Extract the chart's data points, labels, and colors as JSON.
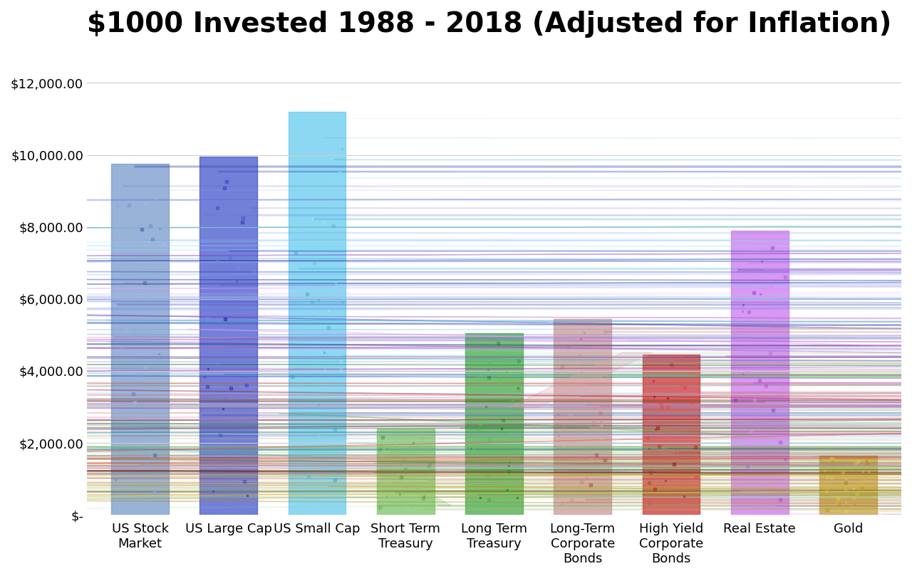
{
  "title": "$1000 Invested 1988 - 2018 (Adjusted for Inflation)",
  "categories": [
    "US Stock\nMarket",
    "US Large Cap",
    "US Small Cap",
    "Short Term\nTreasury",
    "Long Term\nTreasury",
    "Long-Term\nCorporate\nBonds",
    "High Yield\nCorporate\nBonds",
    "Real Estate",
    "Gold"
  ],
  "values": [
    9750,
    9950,
    11200,
    2400,
    5050,
    5450,
    4450,
    7900,
    1650
  ],
  "bar_colors": [
    "#7799cc",
    "#4455cc",
    "#66ccee",
    "#88cc77",
    "#44aa44",
    "#cc9999",
    "#cc3333",
    "#cc77ee",
    "#ccaa44"
  ],
  "bar_alphas": [
    0.75,
    0.75,
    0.75,
    0.85,
    0.75,
    0.75,
    0.75,
    0.75,
    0.85
  ],
  "texture_colors": [
    [
      "#aabbdd",
      "#5566bb",
      "#88aaee",
      "#3344aa"
    ],
    [
      "#5566dd",
      "#2233bb",
      "#7788ee",
      "#1122aa"
    ],
    [
      "#88ddff",
      "#44aacc",
      "#99eeff",
      "#22aacc"
    ],
    [
      "#99cc88",
      "#66aa55",
      "#aabb77",
      "#55993f"
    ],
    [
      "#55bb55",
      "#228833",
      "#66cc44",
      "#116622"
    ],
    [
      "#ddaaaa",
      "#bb6666",
      "#cc8888",
      "#aa4444"
    ],
    [
      "#dd4444",
      "#aa1111",
      "#ee5555",
      "#991111"
    ],
    [
      "#dd88ff",
      "#aa44cc",
      "#ee99ff",
      "#8833bb"
    ],
    [
      "#ddcc66",
      "#bb9922",
      "#eecc44",
      "#aa8811"
    ]
  ],
  "ylim": [
    0,
    13000
  ],
  "yticks": [
    0,
    2000,
    4000,
    6000,
    8000,
    10000,
    12000
  ],
  "ytick_labels": [
    "$-",
    "$2,000.00",
    "$4,000.00",
    "$6,000.00",
    "$8,000.00",
    "$10,000.00",
    "$12,000.00"
  ],
  "title_fontsize": 28,
  "tick_fontsize": 13,
  "xlabel_fontsize": 13,
  "background_color": "#ffffff",
  "grid_color": "#cccccc",
  "bar_width": 0.65
}
